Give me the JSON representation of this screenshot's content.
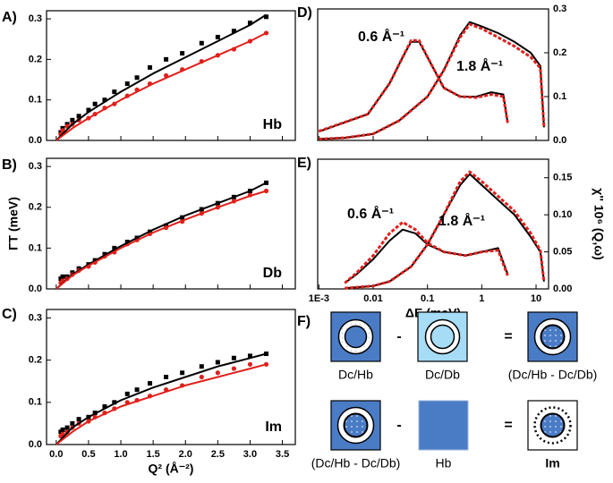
{
  "chart_data": [
    {
      "type": "scatter",
      "label": "A)",
      "annotation": "Hb",
      "xlim": [
        -0.15,
        3.7
      ],
      "ylim": [
        0,
        0.32
      ],
      "xticks": [
        {
          "value": 0,
          "label": "0.0"
        },
        0.5,
        {
          "value": 1,
          "label": "1.0"
        },
        1.5,
        {
          "value": 2,
          "label": "2.0"
        },
        2.5,
        {
          "value": 3,
          "label": "3.0"
        },
        3.5
      ],
      "xtick_labels": false,
      "yticks": [
        {
          "value": 0,
          "label": "0.0"
        },
        0.1,
        0.2,
        0.3
      ],
      "series": [
        {
          "color": "#000000",
          "mode": "markers",
          "marker": "square",
          "x": [
            0.07,
            0.1,
            0.17,
            0.25,
            0.35,
            0.5,
            0.6,
            0.75,
            0.9,
            1.1,
            1.25,
            1.45,
            1.7,
            1.95,
            2.25,
            2.5,
            2.75,
            3.0,
            3.25
          ],
          "values": [
            0.02,
            0.03,
            0.04,
            0.05,
            0.06,
            0.075,
            0.09,
            0.1,
            0.12,
            0.14,
            0.155,
            0.18,
            0.2,
            0.215,
            0.24,
            0.255,
            0.27,
            0.29,
            0.305
          ]
        },
        {
          "color": "#e0201b",
          "mode": "markers",
          "marker": "circle",
          "x": [
            0.07,
            0.1,
            0.17,
            0.25,
            0.35,
            0.5,
            0.6,
            0.75,
            0.9,
            1.1,
            1.25,
            1.45,
            1.7,
            1.95,
            2.25,
            2.5,
            2.75,
            3.0,
            3.25
          ],
          "values": [
            0.015,
            0.025,
            0.035,
            0.04,
            0.05,
            0.055,
            0.065,
            0.08,
            0.09,
            0.11,
            0.125,
            0.14,
            0.16,
            0.175,
            0.195,
            0.21,
            0.225,
            0.245,
            0.265
          ]
        },
        {
          "color": "#000000",
          "mode": "line",
          "x": [
            0,
            0.25,
            0.5,
            1,
            1.5,
            2,
            2.5,
            3,
            3.25
          ],
          "values": [
            0,
            0.04,
            0.07,
            0.12,
            0.165,
            0.205,
            0.245,
            0.285,
            0.31
          ]
        },
        {
          "color": "#e0201b",
          "mode": "line",
          "x": [
            0,
            0.25,
            0.5,
            1,
            1.5,
            2,
            2.5,
            3,
            3.25
          ],
          "values": [
            0,
            0.03,
            0.055,
            0.1,
            0.14,
            0.175,
            0.21,
            0.245,
            0.265
          ]
        }
      ]
    },
    {
      "type": "scatter",
      "label": "B)",
      "annotation": "Db",
      "y_label": "ΓT (meV)",
      "xlim": [
        -0.15,
        3.7
      ],
      "ylim": [
        0,
        0.32
      ],
      "xticks": [
        {
          "value": 0,
          "label": "0.0"
        },
        0.5,
        {
          "value": 1,
          "label": "1.0"
        },
        1.5,
        {
          "value": 2,
          "label": "2.0"
        },
        2.5,
        {
          "value": 3,
          "label": "3.0"
        },
        3.5
      ],
      "xtick_labels": false,
      "yticks": [
        {
          "value": 0,
          "label": "0.0"
        },
        0.1,
        0.2,
        0.3
      ],
      "series": [
        {
          "color": "#000000",
          "mode": "markers",
          "marker": "square",
          "x": [
            0.07,
            0.1,
            0.17,
            0.25,
            0.35,
            0.5,
            0.6,
            0.75,
            0.9,
            1.1,
            1.25,
            1.45,
            1.7,
            1.95,
            2.25,
            2.5,
            2.75,
            3.0,
            3.25
          ],
          "values": [
            0.025,
            0.03,
            0.03,
            0.04,
            0.05,
            0.06,
            0.07,
            0.085,
            0.1,
            0.115,
            0.125,
            0.14,
            0.155,
            0.175,
            0.195,
            0.21,
            0.225,
            0.24,
            0.26
          ]
        },
        {
          "color": "#e0201b",
          "mode": "markers",
          "marker": "circle",
          "x": [
            0.07,
            0.1,
            0.17,
            0.25,
            0.35,
            0.5,
            0.6,
            0.75,
            0.9,
            1.1,
            1.25,
            1.45,
            1.7,
            1.95,
            2.25,
            2.5,
            2.75,
            3.0,
            3.25
          ],
          "values": [
            0.015,
            0.02,
            0.025,
            0.035,
            0.045,
            0.055,
            0.065,
            0.08,
            0.09,
            0.11,
            0.12,
            0.135,
            0.15,
            0.165,
            0.185,
            0.2,
            0.215,
            0.23,
            0.24
          ]
        },
        {
          "color": "#000000",
          "mode": "line",
          "x": [
            0,
            0.25,
            0.5,
            1,
            1.5,
            2,
            2.5,
            3,
            3.25
          ],
          "values": [
            0,
            0.035,
            0.06,
            0.105,
            0.145,
            0.18,
            0.21,
            0.24,
            0.26
          ]
        },
        {
          "color": "#e0201b",
          "mode": "line",
          "x": [
            0,
            0.25,
            0.5,
            1,
            1.5,
            2,
            2.5,
            3,
            3.25
          ],
          "values": [
            0,
            0.033,
            0.057,
            0.1,
            0.138,
            0.17,
            0.2,
            0.228,
            0.24
          ]
        }
      ]
    },
    {
      "type": "scatter",
      "label": "C)",
      "annotation": "Im",
      "x_label": "Q² (Å⁻²)",
      "xlim": [
        -0.15,
        3.7
      ],
      "ylim": [
        0,
        0.32
      ],
      "xticks": [
        {
          "value": 0,
          "label": "0.0"
        },
        0.5,
        {
          "value": 1,
          "label": "1.0"
        },
        1.5,
        {
          "value": 2,
          "label": "2.0"
        },
        2.5,
        {
          "value": 3,
          "label": "3.0"
        },
        3.5
      ],
      "xtick_labels": true,
      "yticks": [
        {
          "value": 0,
          "label": "0.0"
        },
        0.1,
        0.2,
        0.3
      ],
      "series": [
        {
          "color": "#000000",
          "mode": "markers",
          "marker": "square",
          "x": [
            0.07,
            0.1,
            0.17,
            0.25,
            0.35,
            0.5,
            0.6,
            0.75,
            0.9,
            1.1,
            1.25,
            1.45,
            1.7,
            1.95,
            2.25,
            2.5,
            2.75,
            3.0,
            3.25
          ],
          "values": [
            0.03,
            0.035,
            0.04,
            0.05,
            0.06,
            0.065,
            0.075,
            0.09,
            0.1,
            0.12,
            0.13,
            0.145,
            0.16,
            0.17,
            0.185,
            0.195,
            0.205,
            0.21,
            0.215
          ]
        },
        {
          "color": "#e0201b",
          "mode": "markers",
          "marker": "circle",
          "x": [
            0.07,
            0.1,
            0.17,
            0.25,
            0.35,
            0.5,
            0.6,
            0.75,
            0.9,
            1.1,
            1.25,
            1.45,
            1.7,
            1.95,
            2.25,
            2.5,
            2.75,
            3.0,
            3.25
          ],
          "values": [
            0.02,
            0.025,
            0.03,
            0.04,
            0.05,
            0.055,
            0.065,
            0.075,
            0.085,
            0.1,
            0.105,
            0.115,
            0.13,
            0.14,
            0.16,
            0.17,
            0.18,
            0.19,
            0.19
          ]
        },
        {
          "color": "#000000",
          "mode": "line",
          "x": [
            0,
            0.25,
            0.5,
            1,
            1.5,
            2,
            2.5,
            3,
            3.25
          ],
          "values": [
            0,
            0.04,
            0.065,
            0.105,
            0.135,
            0.16,
            0.185,
            0.205,
            0.215
          ]
        },
        {
          "color": "#e0201b",
          "mode": "line",
          "x": [
            0,
            0.25,
            0.5,
            1,
            1.5,
            2,
            2.5,
            3,
            3.25
          ],
          "values": [
            0,
            0.03,
            0.055,
            0.09,
            0.115,
            0.14,
            0.16,
            0.18,
            0.19
          ]
        }
      ]
    },
    {
      "type": "line",
      "label": "D)",
      "xlog": true,
      "yaxis_side": "right",
      "annotations": [
        "0.6 Å⁻¹",
        "1.8 Å⁻¹"
      ],
      "xlim": [
        0.00095,
        17
      ],
      "ylim": [
        0,
        0.3
      ],
      "xticks": [
        {
          "value": 0.001,
          "label": "1E-3"
        },
        0.01,
        0.1,
        1,
        10
      ],
      "xtick_labels": false,
      "yticks": [
        {
          "value": 0,
          "label": "0.0"
        },
        0.1,
        0.2,
        0.3
      ],
      "series": [
        {
          "color": "#000000",
          "mode": "line",
          "x": [
            0.001,
            0.008,
            0.02,
            0.035,
            0.05,
            0.07,
            0.1,
            0.2,
            0.4,
            0.8,
            1.5,
            2.5,
            3
          ],
          "values": [
            0.02,
            0.06,
            0.13,
            0.19,
            0.225,
            0.225,
            0.19,
            0.12,
            0.1,
            0.1,
            0.11,
            0.105,
            0.04
          ]
        },
        {
          "color": "#e0201b",
          "mode": "line",
          "dash": true,
          "x": [
            0.001,
            0.008,
            0.02,
            0.035,
            0.05,
            0.07,
            0.1,
            0.2,
            0.4,
            0.8,
            1.5,
            2.5,
            3
          ],
          "values": [
            0.021,
            0.06,
            0.13,
            0.19,
            0.228,
            0.228,
            0.19,
            0.12,
            0.1,
            0.098,
            0.105,
            0.1,
            0.04
          ]
        },
        {
          "color": "#000000",
          "mode": "line",
          "x": [
            0.001,
            0.003,
            0.01,
            0.03,
            0.1,
            0.2,
            0.4,
            0.6,
            1,
            2,
            4,
            8,
            12,
            14
          ],
          "values": [
            0.003,
            0.006,
            0.015,
            0.045,
            0.1,
            0.16,
            0.24,
            0.27,
            0.26,
            0.245,
            0.225,
            0.2,
            0.17,
            0.03
          ]
        },
        {
          "color": "#e0201b",
          "mode": "line",
          "dash": true,
          "x": [
            0.001,
            0.003,
            0.01,
            0.03,
            0.1,
            0.2,
            0.4,
            0.6,
            1,
            2,
            4,
            8,
            12,
            14
          ],
          "values": [
            0.003,
            0.006,
            0.015,
            0.045,
            0.1,
            0.16,
            0.235,
            0.265,
            0.255,
            0.235,
            0.215,
            0.19,
            0.165,
            0.03
          ]
        }
      ]
    },
    {
      "type": "line",
      "label": "E)",
      "xlog": true,
      "yaxis_side": "right",
      "annotations": [
        "0.6 Å⁻¹",
        "1.8 Å⁻¹"
      ],
      "x_label": "ΔE (meV)",
      "y_label": "χ'' 10⁶ (Q,ω)",
      "xlim": [
        0.00095,
        17
      ],
      "ylim": [
        0,
        0.175
      ],
      "xticks": [
        {
          "value": 0.001,
          "label": "1E-3"
        },
        0.01,
        0.1,
        1,
        10
      ],
      "xtick_labels": true,
      "yticks": [
        {
          "value": 0,
          "label": "0.00"
        },
        0.05,
        {
          "value": 0.1,
          "label": "0.10"
        },
        0.15
      ],
      "series": [
        {
          "color": "#000000",
          "mode": "line",
          "x": [
            0.003,
            0.005,
            0.01,
            0.02,
            0.035,
            0.06,
            0.1,
            0.2,
            0.5,
            1,
            2,
            3
          ],
          "values": [
            0.008,
            0.02,
            0.04,
            0.065,
            0.08,
            0.075,
            0.06,
            0.05,
            0.045,
            0.05,
            0.055,
            0.02
          ]
        },
        {
          "color": "#e0201b",
          "mode": "line",
          "dash": true,
          "x": [
            0.003,
            0.005,
            0.01,
            0.02,
            0.035,
            0.06,
            0.1,
            0.2,
            0.5,
            1,
            2,
            3
          ],
          "values": [
            0.008,
            0.022,
            0.045,
            0.075,
            0.09,
            0.08,
            0.062,
            0.05,
            0.045,
            0.05,
            0.052,
            0.018
          ]
        },
        {
          "color": "#000000",
          "mode": "line",
          "x": [
            0.003,
            0.01,
            0.02,
            0.05,
            0.1,
            0.2,
            0.4,
            0.6,
            1,
            2,
            4,
            8,
            12,
            14
          ],
          "values": [
            0.001,
            0.004,
            0.01,
            0.03,
            0.06,
            0.1,
            0.14,
            0.155,
            0.14,
            0.12,
            0.1,
            0.07,
            0.05,
            0.01
          ]
        },
        {
          "color": "#e0201b",
          "mode": "line",
          "dash": true,
          "x": [
            0.003,
            0.01,
            0.02,
            0.05,
            0.1,
            0.2,
            0.4,
            0.6,
            1,
            2,
            4,
            8,
            12,
            14
          ],
          "values": [
            0.001,
            0.004,
            0.01,
            0.03,
            0.06,
            0.1,
            0.145,
            0.158,
            0.145,
            0.125,
            0.105,
            0.075,
            0.052,
            0.01
          ]
        }
      ]
    }
  ],
  "diagram": {
    "label": "F)",
    "boxes": [
      {
        "caption": "Dc/Hb"
      },
      {
        "caption": "Dc/Db"
      },
      {
        "caption": "(Dc/Hb - Dc/Db)"
      },
      {
        "caption": "(Dc/Hb - Dc/Db)"
      },
      {
        "caption": "Hb"
      },
      {
        "caption": "Im"
      }
    ],
    "operators": [
      "-",
      "=",
      "-",
      "="
    ]
  }
}
